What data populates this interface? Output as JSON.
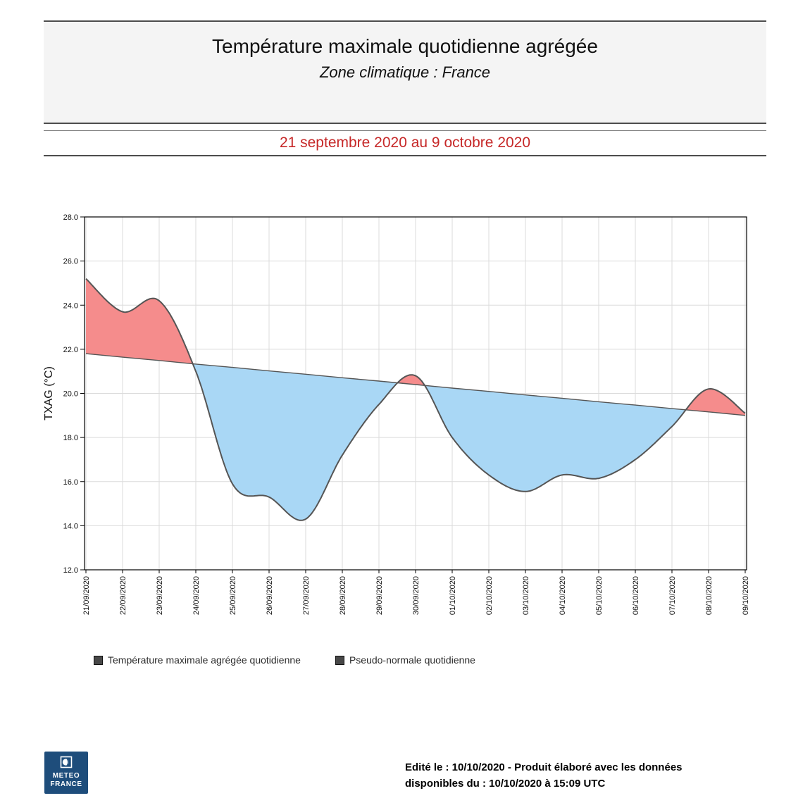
{
  "header": {
    "title": "Température maximale quotidienne agrégée",
    "subtitle": "Zone climatique : France",
    "period": "21 septembre 2020 au 9 octobre 2020"
  },
  "legend": {
    "items": [
      {
        "label": "Température maximale agrégée quotidienne",
        "marker": "dark-square"
      },
      {
        "label": "Pseudo-normale quotidienne",
        "marker": "dark-square"
      }
    ]
  },
  "footer": {
    "line1": "Edité le : 10/10/2020 - Produit élaboré avec les données",
    "line2": "disponibles du : 10/10/2020 à 15:09 UTC",
    "logo_line1": "METEO",
    "logo_line2": "FRANCE"
  },
  "colors": {
    "accent_red_text": "#C62828",
    "area_above_normal": "#F58C8C",
    "area_below_normal": "#A9D7F5",
    "series_line": "#555555",
    "grid": "#DBDBDB",
    "axis": "#000000",
    "logo_bg": "#1E4D7B"
  },
  "chart_data": {
    "type": "area",
    "title": "Température maximale quotidienne agrégée",
    "xlabel": "",
    "ylabel": "TXAG (°C)",
    "ylim": [
      12.0,
      28.0
    ],
    "grid": true,
    "legend_position": "bottom",
    "x_labels": [
      "21/09/2020",
      "22/09/2020",
      "23/09/2020",
      "24/09/2020",
      "25/09/2020",
      "26/09/2020",
      "27/09/2020",
      "28/09/2020",
      "29/09/2020",
      "30/09/2020",
      "01/10/2020",
      "02/10/2020",
      "03/10/2020",
      "04/10/2020",
      "05/10/2020",
      "06/10/2020",
      "07/10/2020",
      "08/10/2020",
      "09/10/2020"
    ],
    "y_ticks": [
      {
        "value": 28.0,
        "label": "28.0"
      },
      {
        "value": 26.0,
        "label": "26.0"
      },
      {
        "value": 24.0,
        "label": "24.0"
      },
      {
        "value": 22.0,
        "label": "22.0"
      },
      {
        "value": 20.0,
        "label": "20.0"
      },
      {
        "value": 18.0,
        "label": "18.0"
      },
      {
        "value": 16.0,
        "label": "16.0"
      },
      {
        "value": 14.0,
        "label": "14.0"
      },
      {
        "value": 12.0,
        "label": "12.0"
      }
    ],
    "series": [
      {
        "name": "Température maximale agrégée quotidienne",
        "values": [
          25.2,
          23.7,
          24.2,
          21.0,
          15.9,
          15.3,
          14.3,
          17.2,
          19.5,
          20.8,
          18.0,
          16.3,
          15.55,
          16.3,
          16.15,
          17.0,
          18.5,
          20.2,
          19.1
        ]
      },
      {
        "name": "Pseudo-normale quotidienne",
        "values": [
          21.8,
          21.64,
          21.49,
          21.33,
          21.18,
          21.02,
          20.87,
          20.71,
          20.56,
          20.4,
          20.24,
          20.09,
          19.93,
          19.78,
          19.62,
          19.47,
          19.31,
          19.16,
          19.0
        ]
      }
    ]
  }
}
